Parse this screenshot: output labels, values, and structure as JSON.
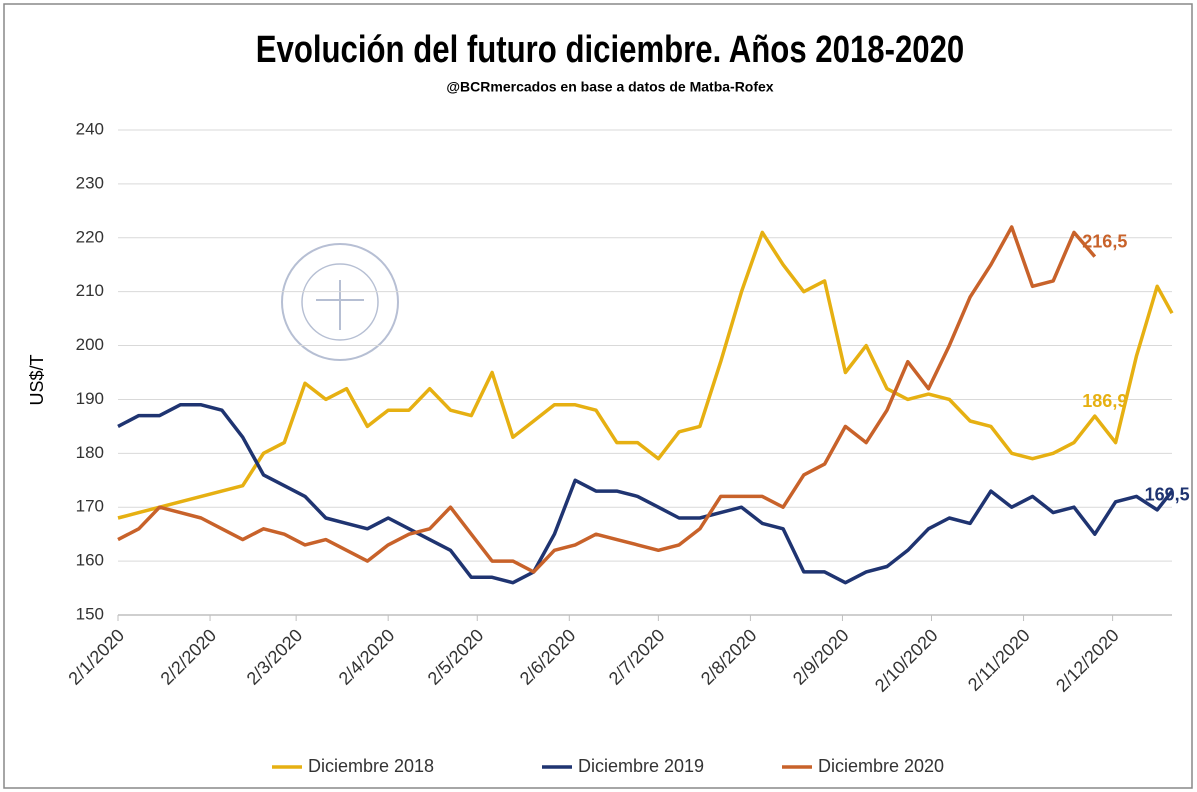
{
  "chart_data": {
    "type": "line",
    "title": "Evolución del futuro diciembre. Años 2018-2020",
    "subtitle": "@BCRmercados en base a datos de Matba-Rofex",
    "y_label": "US$/T",
    "x": [
      "2/1/2020",
      "9/1/2020",
      "16/1/2020",
      "23/1/2020",
      "30/1/2020",
      "6/2/2020",
      "13/2/2020",
      "20/2/2020",
      "27/2/2020",
      "5/3/2020",
      "12/3/2020",
      "19/3/2020",
      "26/3/2020",
      "2/4/2020",
      "9/4/2020",
      "16/4/2020",
      "23/4/2020",
      "30/4/2020",
      "7/5/2020",
      "14/5/2020",
      "21/5/2020",
      "28/5/2020",
      "4/6/2020",
      "11/6/2020",
      "18/6/2020",
      "25/6/2020",
      "2/7/2020",
      "9/7/2020",
      "16/7/2020",
      "23/7/2020",
      "30/7/2020",
      "6/8/2020",
      "13/8/2020",
      "20/8/2020",
      "27/8/2020",
      "3/9/2020",
      "10/9/2020",
      "17/9/2020",
      "24/9/2020",
      "1/10/2020",
      "8/10/2020",
      "15/10/2020",
      "22/10/2020",
      "29/10/2020",
      "5/11/2020",
      "12/11/2020",
      "19/11/2020",
      "26/11/2020",
      "3/12/2020",
      "10/12/2020",
      "17/12/2020",
      "22/12/2020"
    ],
    "series": [
      {
        "name": "Diciembre 2018",
        "color": "#e6b012",
        "values": [
          168,
          169,
          170,
          171,
          172,
          173,
          174,
          180,
          182,
          193,
          190,
          192,
          185,
          188,
          188,
          192,
          188,
          187,
          195,
          183,
          186,
          189,
          189,
          188,
          182,
          182,
          179,
          184,
          185,
          197,
          210,
          221,
          215,
          210,
          212,
          195,
          200,
          192,
          190,
          191,
          190,
          186,
          185,
          180,
          179,
          180,
          182,
          186.9,
          182,
          198,
          211,
          206
        ],
        "value_labels": [
          null,
          null,
          null,
          null,
          null,
          null,
          null,
          null,
          null,
          null,
          null,
          null,
          null,
          null,
          null,
          null,
          null,
          null,
          null,
          null,
          null,
          null,
          null,
          null,
          null,
          null,
          null,
          null,
          null,
          null,
          null,
          null,
          null,
          null,
          null,
          null,
          null,
          null,
          null,
          null,
          null,
          null,
          null,
          null,
          null,
          null,
          null,
          "186,9",
          null,
          null,
          null,
          null
        ]
      },
      {
        "name": "Diciembre 2019",
        "color": "#1f3471",
        "values": [
          185,
          187,
          187,
          189,
          189,
          188,
          183,
          176,
          174,
          172,
          168,
          167,
          166,
          168,
          166,
          164,
          162,
          157,
          157,
          156,
          158,
          165,
          175,
          173,
          173,
          172,
          170,
          168,
          168,
          169,
          170,
          167,
          166,
          158,
          158,
          156,
          158,
          159,
          162,
          166,
          168,
          167,
          173,
          170,
          172,
          169,
          170,
          165,
          171,
          172,
          169.5,
          173
        ],
        "value_labels": [
          null,
          null,
          null,
          null,
          null,
          null,
          null,
          null,
          null,
          null,
          null,
          null,
          null,
          null,
          null,
          null,
          null,
          null,
          null,
          null,
          null,
          null,
          null,
          null,
          null,
          null,
          null,
          null,
          null,
          null,
          null,
          null,
          null,
          null,
          null,
          null,
          null,
          null,
          null,
          null,
          null,
          null,
          null,
          null,
          null,
          null,
          null,
          null,
          null,
          null,
          "169,5",
          null
        ]
      },
      {
        "name": "Diciembre 2020",
        "color": "#c8622a",
        "values": [
          164,
          166,
          170,
          169,
          168,
          166,
          164,
          166,
          165,
          163,
          164,
          162,
          160,
          163,
          165,
          166,
          170,
          165,
          160,
          160,
          158,
          162,
          163,
          165,
          164,
          163,
          162,
          163,
          166,
          172,
          172,
          172,
          170,
          176,
          178,
          185,
          182,
          188,
          197,
          192,
          200,
          209,
          215,
          222,
          211,
          212,
          221,
          216.5,
          null,
          null,
          null,
          null
        ],
        "value_labels": [
          null,
          null,
          null,
          null,
          null,
          null,
          null,
          null,
          null,
          null,
          null,
          null,
          null,
          null,
          null,
          null,
          null,
          null,
          null,
          null,
          null,
          null,
          null,
          null,
          null,
          null,
          null,
          null,
          null,
          null,
          null,
          null,
          null,
          null,
          null,
          null,
          null,
          null,
          null,
          null,
          null,
          null,
          null,
          null,
          null,
          null,
          null,
          "216,5",
          null,
          null,
          null,
          null
        ]
      }
    ],
    "xlim": [
      "2/1/2020",
      "22/12/2020"
    ],
    "xticks": [
      "2/1/2020",
      "2/2/2020",
      "2/3/2020",
      "2/4/2020",
      "2/5/2020",
      "2/6/2020",
      "2/7/2020",
      "2/8/2020",
      "2/9/2020",
      "2/10/2020",
      "2/11/2020",
      "2/12/2020"
    ],
    "ylim": [
      150,
      240
    ],
    "yticks": [
      150,
      160,
      170,
      180,
      190,
      200,
      210,
      220,
      230,
      240
    ],
    "grid": true,
    "legend": "bottom"
  }
}
